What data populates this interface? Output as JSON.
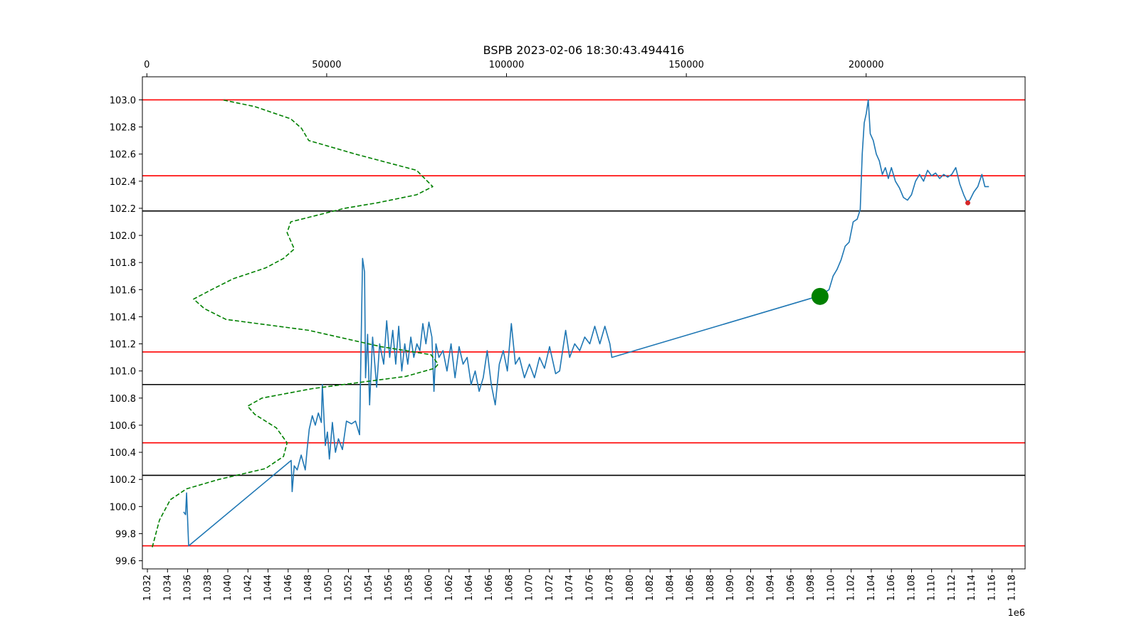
{
  "chart_data": {
    "type": "line",
    "title": "BSPB 2023-02-06 18:30:43.494416",
    "x_offset_text": "1e6",
    "xlim": [
      1031500,
      1119300
    ],
    "ylim": [
      99.54,
      103.17
    ],
    "x_ticks": [
      1032000,
      1034000,
      1036000,
      1038000,
      1040000,
      1042000,
      1044000,
      1046000,
      1048000,
      1050000,
      1052000,
      1054000,
      1056000,
      1058000,
      1060000,
      1062000,
      1064000,
      1066000,
      1068000,
      1070000,
      1072000,
      1074000,
      1076000,
      1078000,
      1080000,
      1082000,
      1084000,
      1086000,
      1088000,
      1090000,
      1092000,
      1094000,
      1096000,
      1098000,
      1100000,
      1102000,
      1104000,
      1106000,
      1108000,
      1110000,
      1112000,
      1114000,
      1116000,
      1118000
    ],
    "x_tick_labels": [
      "1.032",
      "1.034",
      "1.036",
      "1.038",
      "1.040",
      "1.042",
      "1.044",
      "1.046",
      "1.048",
      "1.050",
      "1.052",
      "1.054",
      "1.056",
      "1.058",
      "1.060",
      "1.062",
      "1.064",
      "1.066",
      "1.068",
      "1.070",
      "1.072",
      "1.074",
      "1.076",
      "1.078",
      "1.080",
      "1.082",
      "1.084",
      "1.086",
      "1.088",
      "1.090",
      "1.092",
      "1.094",
      "1.096",
      "1.098",
      "1.100",
      "1.102",
      "1.104",
      "1.106",
      "1.108",
      "1.110",
      "1.112",
      "1.114",
      "1.116",
      "1.118"
    ],
    "y_ticks": [
      99.6,
      99.8,
      100.0,
      100.2,
      100.4,
      100.6,
      100.8,
      101.0,
      101.2,
      101.4,
      101.6,
      101.8,
      102.0,
      102.2,
      102.4,
      102.6,
      102.8,
      103.0
    ],
    "y_tick_labels": [
      "99.6",
      "99.8",
      "100.0",
      "100.2",
      "100.4",
      "100.6",
      "100.8",
      "101.0",
      "101.2",
      "101.4",
      "101.6",
      "101.8",
      "102.0",
      "102.2",
      "102.4",
      "102.6",
      "102.8",
      "103.0"
    ],
    "top_axis": {
      "xlim": [
        -1250,
        244200
      ],
      "ticks": [
        0,
        50000,
        100000,
        150000,
        200000
      ],
      "tick_labels": [
        "0",
        "50000",
        "100000",
        "150000",
        "200000"
      ]
    },
    "colors": {
      "price": "#1f77b4",
      "level_red": "#ff0000",
      "level_black": "#000000",
      "profile": "#008000",
      "entry_marker": "#008000",
      "exit_marker": "#d62728"
    },
    "hlines_red": [
      103.0,
      102.44,
      101.14,
      100.47,
      99.71
    ],
    "hlines_black": [
      102.18,
      100.9,
      100.23
    ],
    "price_series": [
      [
        1035600,
        99.96
      ],
      [
        1035800,
        99.94
      ],
      [
        1035900,
        100.1
      ],
      [
        1036100,
        99.71
      ],
      [
        1046300,
        100.34
      ],
      [
        1046400,
        100.11
      ],
      [
        1046600,
        100.3
      ],
      [
        1046900,
        100.27
      ],
      [
        1047300,
        100.38
      ],
      [
        1047700,
        100.27
      ],
      [
        1047900,
        100.43
      ],
      [
        1048100,
        100.57
      ],
      [
        1048400,
        100.67
      ],
      [
        1048700,
        100.6
      ],
      [
        1049000,
        100.69
      ],
      [
        1049300,
        100.62
      ],
      [
        1049400,
        100.9
      ],
      [
        1049700,
        100.45
      ],
      [
        1049900,
        100.55
      ],
      [
        1050100,
        100.35
      ],
      [
        1050400,
        100.62
      ],
      [
        1050700,
        100.4
      ],
      [
        1051000,
        100.5
      ],
      [
        1051400,
        100.42
      ],
      [
        1051800,
        100.63
      ],
      [
        1052300,
        100.61
      ],
      [
        1052700,
        100.63
      ],
      [
        1053100,
        100.53
      ],
      [
        1053400,
        101.83
      ],
      [
        1053600,
        101.73
      ],
      [
        1053700,
        100.95
      ],
      [
        1053900,
        101.27
      ],
      [
        1054100,
        100.75
      ],
      [
        1054400,
        101.25
      ],
      [
        1054800,
        100.88
      ],
      [
        1055100,
        101.2
      ],
      [
        1055500,
        101.05
      ],
      [
        1055800,
        101.37
      ],
      [
        1056100,
        101.1
      ],
      [
        1056400,
        101.3
      ],
      [
        1056700,
        101.05
      ],
      [
        1057000,
        101.33
      ],
      [
        1057300,
        101.0
      ],
      [
        1057600,
        101.2
      ],
      [
        1057900,
        101.05
      ],
      [
        1058200,
        101.25
      ],
      [
        1058500,
        101.1
      ],
      [
        1058800,
        101.2
      ],
      [
        1059100,
        101.15
      ],
      [
        1059400,
        101.35
      ],
      [
        1059700,
        101.2
      ],
      [
        1060000,
        101.36
      ],
      [
        1060300,
        101.25
      ],
      [
        1060500,
        100.85
      ],
      [
        1060700,
        101.2
      ],
      [
        1061000,
        101.1
      ],
      [
        1061400,
        101.15
      ],
      [
        1061800,
        101.0
      ],
      [
        1062200,
        101.2
      ],
      [
        1062600,
        100.95
      ],
      [
        1063000,
        101.18
      ],
      [
        1063400,
        101.05
      ],
      [
        1063800,
        101.1
      ],
      [
        1064200,
        100.9
      ],
      [
        1064600,
        101.0
      ],
      [
        1065000,
        100.85
      ],
      [
        1065400,
        100.95
      ],
      [
        1065800,
        101.15
      ],
      [
        1066200,
        100.9
      ],
      [
        1066600,
        100.75
      ],
      [
        1067000,
        101.05
      ],
      [
        1067400,
        101.15
      ],
      [
        1067800,
        101.0
      ],
      [
        1068200,
        101.35
      ],
      [
        1068600,
        101.05
      ],
      [
        1069000,
        101.1
      ],
      [
        1069500,
        100.95
      ],
      [
        1070000,
        101.05
      ],
      [
        1070500,
        100.95
      ],
      [
        1071000,
        101.1
      ],
      [
        1071500,
        101.02
      ],
      [
        1072000,
        101.18
      ],
      [
        1072600,
        100.98
      ],
      [
        1073000,
        101.0
      ],
      [
        1073600,
        101.3
      ],
      [
        1074000,
        101.1
      ],
      [
        1074500,
        101.2
      ],
      [
        1075000,
        101.15
      ],
      [
        1075500,
        101.25
      ],
      [
        1076000,
        101.2
      ],
      [
        1076500,
        101.33
      ],
      [
        1077000,
        101.2
      ],
      [
        1077500,
        101.33
      ],
      [
        1078000,
        101.2
      ],
      [
        1078200,
        101.1
      ],
      [
        1098200,
        101.54
      ],
      [
        1098600,
        101.58
      ],
      [
        1099000,
        101.55
      ],
      [
        1099400,
        101.58
      ],
      [
        1099800,
        101.6
      ],
      [
        1100200,
        101.7
      ],
      [
        1100600,
        101.75
      ],
      [
        1101000,
        101.82
      ],
      [
        1101400,
        101.92
      ],
      [
        1101800,
        101.95
      ],
      [
        1102200,
        102.1
      ],
      [
        1102600,
        102.12
      ],
      [
        1102900,
        102.19
      ],
      [
        1103100,
        102.6
      ],
      [
        1103300,
        102.83
      ],
      [
        1103500,
        102.9
      ],
      [
        1103700,
        103.0
      ],
      [
        1103900,
        102.75
      ],
      [
        1104200,
        102.7
      ],
      [
        1104500,
        102.6
      ],
      [
        1104800,
        102.55
      ],
      [
        1105100,
        102.45
      ],
      [
        1105400,
        102.5
      ],
      [
        1105700,
        102.42
      ],
      [
        1106000,
        102.5
      ],
      [
        1106400,
        102.4
      ],
      [
        1106800,
        102.35
      ],
      [
        1107200,
        102.28
      ],
      [
        1107600,
        102.26
      ],
      [
        1108000,
        102.3
      ],
      [
        1108400,
        102.4
      ],
      [
        1108800,
        102.45
      ],
      [
        1109200,
        102.4
      ],
      [
        1109600,
        102.48
      ],
      [
        1110000,
        102.44
      ],
      [
        1110400,
        102.46
      ],
      [
        1110800,
        102.42
      ],
      [
        1111200,
        102.45
      ],
      [
        1111600,
        102.43
      ],
      [
        1112000,
        102.45
      ],
      [
        1112400,
        102.5
      ],
      [
        1112800,
        102.38
      ],
      [
        1113200,
        102.3
      ],
      [
        1113500,
        102.25
      ],
      [
        1113800,
        102.26
      ],
      [
        1114200,
        102.32
      ],
      [
        1114600,
        102.36
      ],
      [
        1115000,
        102.45
      ],
      [
        1115300,
        102.36
      ],
      [
        1115700,
        102.36
      ]
    ],
    "profile_series": [
      [
        1500,
        99.7
      ],
      [
        3500,
        99.9
      ],
      [
        6500,
        100.05
      ],
      [
        11000,
        100.13
      ],
      [
        20000,
        100.2
      ],
      [
        33000,
        100.28
      ],
      [
        38000,
        100.37
      ],
      [
        39000,
        100.47
      ],
      [
        36000,
        100.58
      ],
      [
        30000,
        100.68
      ],
      [
        28000,
        100.74
      ],
      [
        32000,
        100.8
      ],
      [
        46000,
        100.87
      ],
      [
        72000,
        100.96
      ],
      [
        80000,
        101.02
      ],
      [
        81000,
        101.05
      ],
      [
        79000,
        101.12
      ],
      [
        65000,
        101.18
      ],
      [
        45000,
        101.3
      ],
      [
        22000,
        101.38
      ],
      [
        16000,
        101.46
      ],
      [
        13000,
        101.53
      ],
      [
        18000,
        101.6
      ],
      [
        24000,
        101.68
      ],
      [
        33000,
        101.76
      ],
      [
        38000,
        101.83
      ],
      [
        41000,
        101.9
      ],
      [
        39000,
        102.02
      ],
      [
        40000,
        102.1
      ],
      [
        55000,
        102.2
      ],
      [
        64000,
        102.24
      ],
      [
        75000,
        102.3
      ],
      [
        79500,
        102.36
      ],
      [
        75000,
        102.48
      ],
      [
        58000,
        102.6
      ],
      [
        45000,
        102.7
      ],
      [
        43000,
        102.79
      ],
      [
        40000,
        102.86
      ],
      [
        30000,
        102.95
      ],
      [
        21000,
        103.0
      ]
    ],
    "entry_marker": [
      1098900,
      101.55
    ],
    "exit_marker": [
      1113600,
      102.24
    ]
  }
}
